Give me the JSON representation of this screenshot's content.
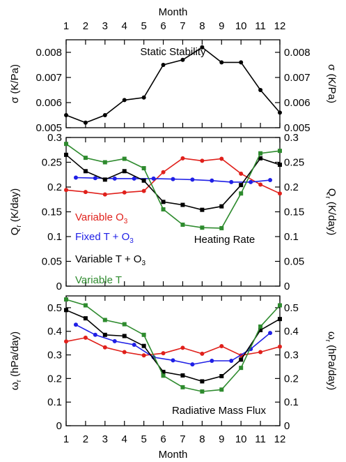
{
  "chart_data": [
    {
      "type": "line",
      "title": "Static Stability",
      "xlabel_top": "Month",
      "ylabel_left": "σ (K/Pa)",
      "ylabel_right": "σ (K/Pa)",
      "x_ticks": [
        "1",
        "2",
        "3",
        "4",
        "5",
        "6",
        "7",
        "8",
        "9",
        "10",
        "11",
        "12"
      ],
      "xlim": [
        1,
        12
      ],
      "ylim": [
        0.005,
        0.0085
      ],
      "y_ticks": [
        "0.005",
        "0.006",
        "0.007",
        "0.008"
      ],
      "y_tick_values": [
        0.005,
        0.006,
        0.007,
        0.008
      ],
      "series": [
        {
          "color": "#000000",
          "marker": "circle",
          "x": [
            1,
            2,
            3,
            4,
            5,
            6,
            7,
            8,
            9,
            10,
            11,
            12
          ],
          "values": [
            0.0055,
            0.0052,
            0.0055,
            0.0061,
            0.0062,
            0.0075,
            0.0077,
            0.0082,
            0.0076,
            0.0076,
            0.0065,
            0.0056
          ]
        }
      ]
    },
    {
      "type": "line",
      "title": "Heating Rate",
      "ylabel_left": "Q",
      "ylabel_left_sub": "r",
      "ylabel_left_unit": " (K/day)",
      "ylabel_right": "Q",
      "ylabel_right_sub": "r",
      "ylabel_right_unit": " (K/day)",
      "xlim": [
        1,
        12
      ],
      "ylim": [
        0,
        0.3
      ],
      "y_ticks": [
        "0",
        "0.05",
        "0.1",
        "0.15",
        "0.2",
        "0.25",
        "0.3"
      ],
      "y_tick_values": [
        0,
        0.05,
        0.1,
        0.15,
        0.2,
        0.25,
        0.3
      ],
      "legend": "left",
      "series": [
        {
          "name": "Variable O",
          "name_sub": "3",
          "color": "#e0201b",
          "marker": "circle",
          "x": [
            1,
            2,
            3,
            4,
            5,
            6,
            7,
            8,
            9,
            10,
            11,
            12
          ],
          "values": [
            0.194,
            0.19,
            0.185,
            0.189,
            0.192,
            0.23,
            0.258,
            0.253,
            0.257,
            0.227,
            0.205,
            0.187
          ]
        },
        {
          "name": "Fixed T + O",
          "name_sub": "3",
          "color": "#1f1fe6",
          "marker": "circle",
          "x": [
            1.5,
            2.5,
            3.5,
            4.5,
            5.5,
            6.5,
            7.5,
            8.5,
            9.5,
            10.5,
            11.5
          ],
          "values": [
            0.219,
            0.218,
            0.217,
            0.217,
            0.217,
            0.216,
            0.215,
            0.213,
            0.21,
            0.21,
            0.214
          ]
        },
        {
          "name": "Variable T + O",
          "name_sub": "3",
          "color": "#000000",
          "marker": "square",
          "x": [
            1,
            2,
            3,
            4,
            5,
            6,
            7,
            8,
            9,
            10,
            11,
            12
          ],
          "values": [
            0.265,
            0.232,
            0.215,
            0.232,
            0.213,
            0.17,
            0.164,
            0.154,
            0.161,
            0.204,
            0.258,
            0.245
          ]
        },
        {
          "name": "Variable T",
          "color": "#2e8b2e",
          "marker": "square",
          "x": [
            1,
            2,
            3,
            4,
            5,
            6,
            7,
            8,
            9,
            10,
            11,
            12
          ],
          "values": [
            0.287,
            0.259,
            0.25,
            0.257,
            0.238,
            0.155,
            0.124,
            0.118,
            0.117,
            0.187,
            0.268,
            0.273
          ]
        }
      ]
    },
    {
      "type": "line",
      "title": "Radiative Mass Flux",
      "xlabel": "Month",
      "ylabel_left": "ω",
      "ylabel_left_sub": "r",
      "ylabel_left_unit": " (hPa/day)",
      "ylabel_right": "ω",
      "ylabel_right_sub": "r",
      "ylabel_right_unit": " (hPa/day)",
      "x_ticks": [
        "1",
        "2",
        "3",
        "4",
        "5",
        "6",
        "7",
        "8",
        "9",
        "10",
        "11",
        "12"
      ],
      "xlim": [
        1,
        12
      ],
      "ylim": [
        0,
        0.55
      ],
      "y_ticks": [
        "0",
        "0.1",
        "0.2",
        "0.3",
        "0.4",
        "0.5"
      ],
      "y_tick_values": [
        0,
        0.1,
        0.2,
        0.3,
        0.4,
        0.5
      ],
      "series": [
        {
          "color": "#e0201b",
          "marker": "circle",
          "x": [
            1,
            2,
            3,
            4,
            5,
            6,
            7,
            8,
            9,
            10,
            11,
            12
          ],
          "values": [
            0.357,
            0.373,
            0.332,
            0.312,
            0.298,
            0.307,
            0.33,
            0.305,
            0.337,
            0.298,
            0.312,
            0.335
          ]
        },
        {
          "color": "#1f1fe6",
          "marker": "circle",
          "x": [
            1.5,
            2.5,
            3.5,
            4.5,
            5.5,
            6.5,
            7.5,
            8.5,
            9.5,
            10.5,
            11.5
          ],
          "values": [
            0.428,
            0.385,
            0.358,
            0.343,
            0.29,
            0.277,
            0.26,
            0.275,
            0.275,
            0.325,
            0.393
          ]
        },
        {
          "color": "#000000",
          "marker": "square",
          "x": [
            1,
            2,
            3,
            4,
            5,
            6,
            7,
            8,
            9,
            10,
            11,
            12
          ],
          "values": [
            0.49,
            0.455,
            0.385,
            0.38,
            0.338,
            0.228,
            0.213,
            0.188,
            0.21,
            0.28,
            0.405,
            0.452
          ]
        },
        {
          "color": "#2e8b2e",
          "marker": "square",
          "x": [
            1,
            2,
            3,
            4,
            5,
            6,
            7,
            8,
            9,
            10,
            11,
            12
          ],
          "values": [
            0.535,
            0.51,
            0.448,
            0.43,
            0.385,
            0.212,
            0.163,
            0.145,
            0.153,
            0.245,
            0.42,
            0.51
          ]
        }
      ]
    }
  ]
}
